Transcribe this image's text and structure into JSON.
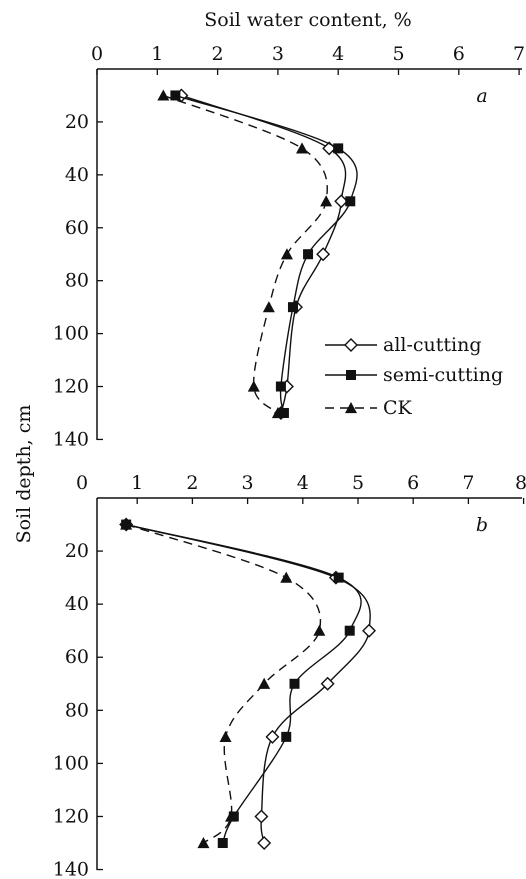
{
  "chart_data": [
    {
      "type": "line",
      "panel_label": "a",
      "xlabel": "Soil water content, %",
      "ylabel": "Soil depth, cm",
      "xlim": [
        0,
        7
      ],
      "ylim": [
        140,
        0
      ],
      "x_ticks": [
        "0",
        "1",
        "2",
        "3",
        "4",
        "5",
        "6",
        "7"
      ],
      "y_ticks": [
        "20",
        "40",
        "60",
        "80",
        "100",
        "120",
        "140"
      ],
      "x_axis_position": "top",
      "y": [
        10,
        30,
        50,
        70,
        90,
        120,
        130
      ],
      "series": [
        {
          "name": "all-cutting",
          "marker": "diamond-open",
          "line": "solid",
          "x": [
            1.4,
            3.85,
            4.05,
            3.75,
            3.3,
            3.15,
            3.05
          ],
          "y": [
            10,
            30,
            50,
            70,
            90,
            120,
            130
          ]
        },
        {
          "name": "semi-cutting",
          "marker": "square-filled",
          "line": "solid",
          "x": [
            1.3,
            4.0,
            4.2,
            3.5,
            3.25,
            3.05,
            3.1
          ],
          "y": [
            10,
            30,
            50,
            70,
            90,
            120,
            130
          ]
        },
        {
          "name": "CK",
          "marker": "triangle-filled",
          "line": "dashed",
          "x": [
            1.1,
            3.4,
            3.8,
            3.15,
            2.85,
            2.6,
            3.0
          ],
          "y": [
            10,
            30,
            50,
            70,
            90,
            120,
            130
          ]
        }
      ],
      "legend_position": "bottom-right",
      "grid": false
    },
    {
      "type": "line",
      "panel_label": "b",
      "xlim": [
        0,
        8
      ],
      "ylim": [
        140,
        0
      ],
      "x_ticks": [
        "0",
        "1",
        "2",
        "3",
        "4",
        "5",
        "6",
        "7",
        "8"
      ],
      "y_ticks": [
        "20",
        "40",
        "60",
        "80",
        "100",
        "120",
        "140"
      ],
      "x_axis_position": "top",
      "y": [
        10,
        30,
        50,
        70,
        90,
        120,
        130
      ],
      "series": [
        {
          "name": "all-cutting",
          "marker": "diamond-open",
          "line": "solid",
          "x": [
            0.8,
            4.6,
            5.2,
            4.45,
            3.45,
            3.25,
            3.3
          ],
          "y": [
            10,
            30,
            50,
            70,
            90,
            120,
            130
          ]
        },
        {
          "name": "semi-cutting",
          "marker": "square-filled",
          "line": "solid",
          "x": [
            0.8,
            4.65,
            4.85,
            3.85,
            3.7,
            2.75,
            2.55
          ],
          "y": [
            10,
            30,
            50,
            70,
            90,
            120,
            130
          ]
        },
        {
          "name": "CK",
          "marker": "triangle-filled",
          "line": "dashed",
          "x": [
            0.8,
            3.7,
            4.3,
            3.3,
            2.6,
            2.7,
            2.2
          ],
          "y": [
            10,
            30,
            50,
            70,
            90,
            120,
            130
          ]
        }
      ],
      "grid": false
    }
  ],
  "colors": {
    "ink": "#111111",
    "background": "#ffffff"
  }
}
